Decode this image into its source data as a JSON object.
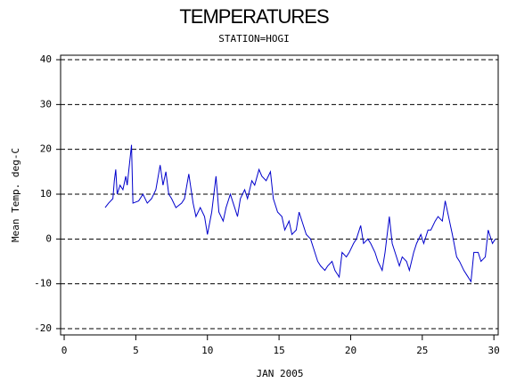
{
  "chart_data": {
    "type": "line",
    "title": "TEMPERATURES",
    "subtitle": "STATION=HOGI",
    "xlabel": "JAN 2005",
    "ylabel": "Mean Temp. deg-C",
    "color": "#0000cc",
    "grid": true,
    "xlim": [
      -0.25,
      30.3
    ],
    "xticks": [
      0,
      5,
      10,
      15,
      20,
      25,
      30
    ],
    "ylim": [
      -21.4,
      41
    ],
    "yticks": [
      -20,
      -10,
      0,
      10,
      20,
      30,
      40
    ],
    "x": [
      2.86,
      3.1,
      3.4,
      3.5,
      3.6,
      3.7,
      3.9,
      4.1,
      4.3,
      4.4,
      4.7,
      4.8,
      5.2,
      5.5,
      5.8,
      6.1,
      6.4,
      6.7,
      6.9,
      7.1,
      7.3,
      7.5,
      7.8,
      8.2,
      8.4,
      8.7,
      9.0,
      9.2,
      9.5,
      9.8,
      10.0,
      10.3,
      10.6,
      10.8,
      11.1,
      11.3,
      11.6,
      11.8,
      12.1,
      12.3,
      12.6,
      12.8,
      13.1,
      13.3,
      13.6,
      13.8,
      14.1,
      14.4,
      14.6,
      14.9,
      15.2,
      15.4,
      15.7,
      15.9,
      16.2,
      16.4,
      16.7,
      16.9,
      17.2,
      17.4,
      17.7,
      17.9,
      18.2,
      18.4,
      18.7,
      18.9,
      19.2,
      19.4,
      19.7,
      19.9,
      20.2,
      20.4,
      20.7,
      20.9,
      21.2,
      21.4,
      21.7,
      21.9,
      22.2,
      22.4,
      22.7,
      22.9,
      23.1,
      23.4,
      23.6,
      23.9,
      24.1,
      24.4,
      24.6,
      24.9,
      25.1,
      25.4,
      25.6,
      25.9,
      26.1,
      26.4,
      26.6,
      26.9,
      27.1,
      27.4,
      27.6,
      27.9,
      28.1,
      28.4,
      28.6,
      28.9,
      29.1,
      29.4,
      29.6,
      29.9,
      30.1
    ],
    "values": [
      7,
      8,
      9,
      13,
      15.5,
      10,
      12,
      11,
      14,
      12,
      21,
      8,
      8.5,
      10,
      8,
      9,
      11,
      16.5,
      12,
      15,
      10,
      9,
      7,
      8,
      9,
      14.5,
      8,
      5,
      7,
      5,
      1,
      6,
      14,
      6,
      4,
      7,
      10,
      8,
      5,
      9,
      11,
      9,
      13,
      12,
      15.5,
      14,
      13,
      15,
      9,
      6,
      5,
      2,
      4,
      1,
      2,
      6,
      3,
      1,
      0,
      -2,
      -5,
      -6,
      -7,
      -6,
      -5,
      -7,
      -8.5,
      -3,
      -4,
      -3,
      -1,
      0,
      3,
      -1,
      0,
      -1,
      -3,
      -5,
      -7,
      -3,
      5,
      -1,
      -3,
      -6,
      -4,
      -5,
      -7,
      -3,
      -1,
      1,
      -1,
      2,
      2,
      4,
      5,
      4,
      8.5,
      4,
      1,
      -4,
      -5,
      -7,
      -8,
      -9.5,
      -3,
      -3,
      -5,
      -4,
      2,
      -1,
      0
    ]
  }
}
